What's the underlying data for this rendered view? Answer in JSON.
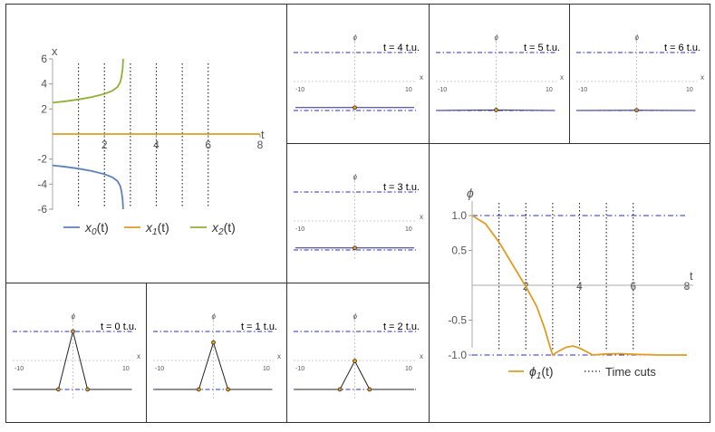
{
  "chart_data": [
    {
      "type": "line",
      "panel": "trajectories",
      "xlabel": "t",
      "ylabel": "x",
      "xlim": [
        0,
        8
      ],
      "ylim": [
        -6,
        6
      ],
      "x_ticks": [
        "2",
        "4",
        "6",
        "8"
      ],
      "y_ticks": [
        "-6",
        "-4",
        "-2",
        "2",
        "4",
        "6"
      ],
      "time_cuts": [
        1,
        2,
        3,
        4,
        5,
        6
      ],
      "series": [
        {
          "name": "x",
          "sub": "0",
          "suffix": "(t)",
          "color": "#5e81b5",
          "points": [
            [
              0,
              -2.5
            ],
            [
              0.5,
              -2.62
            ],
            [
              1,
              -2.76
            ],
            [
              1.5,
              -2.95
            ],
            [
              2,
              -3.2
            ],
            [
              2.3,
              -3.45
            ],
            [
              2.5,
              -3.75
            ],
            [
              2.6,
              -4.1
            ],
            [
              2.65,
              -4.5
            ],
            [
              2.7,
              -5.2
            ],
            [
              2.72,
              -6
            ]
          ]
        },
        {
          "name": "x",
          "sub": "1",
          "suffix": "(t)",
          "color": "#e19c24",
          "points": [
            [
              0,
              0
            ],
            [
              8,
              0
            ]
          ]
        },
        {
          "name": "x",
          "sub": "2",
          "suffix": "(t)",
          "color": "#8fb032",
          "points": [
            [
              0,
              2.5
            ],
            [
              0.5,
              2.62
            ],
            [
              1,
              2.76
            ],
            [
              1.5,
              2.95
            ],
            [
              2,
              3.2
            ],
            [
              2.3,
              3.45
            ],
            [
              2.5,
              3.75
            ],
            [
              2.6,
              4.1
            ],
            [
              2.65,
              4.5
            ],
            [
              2.7,
              5.2
            ],
            [
              2.72,
              6
            ]
          ]
        }
      ]
    },
    {
      "type": "line",
      "panel": "phi1",
      "xlabel": "t",
      "ylabel": "ϕ",
      "xlim": [
        0,
        8
      ],
      "ylim": [
        -1.25,
        1.25
      ],
      "x_ticks": [
        "2",
        "4",
        "6",
        "8"
      ],
      "y_ticks": [
        "-1.0",
        "-0.5",
        "0.5",
        "1.0"
      ],
      "reference_lines": [
        1,
        -1
      ],
      "time_cuts": [
        1,
        2,
        3,
        4,
        5,
        6
      ],
      "legend": [
        {
          "text": "ϕ",
          "sub": "1",
          "suffix": "(t)"
        },
        {
          "text": "Time cuts"
        }
      ],
      "series": [
        {
          "name": "ϕ",
          "sub": "1",
          "suffix": "(t)",
          "color": "#e19c24",
          "points": [
            [
              0,
              1
            ],
            [
              0.5,
              0.88
            ],
            [
              1,
              0.62
            ],
            [
              1.5,
              0.3
            ],
            [
              2,
              -0.02
            ],
            [
              2.4,
              -0.3
            ],
            [
              2.7,
              -0.62
            ],
            [
              2.9,
              -0.88
            ],
            [
              3,
              -1
            ],
            [
              3.2,
              -0.95
            ],
            [
              3.5,
              -0.89
            ],
            [
              3.75,
              -0.87
            ],
            [
              4,
              -0.9
            ],
            [
              4.3,
              -0.96
            ],
            [
              4.5,
              -1
            ],
            [
              5,
              -0.985
            ],
            [
              5.5,
              -0.98
            ],
            [
              6,
              -0.99
            ],
            [
              7,
              -1
            ],
            [
              8,
              -1
            ]
          ]
        }
      ]
    },
    {
      "type": "line",
      "panel": "snapshots",
      "xlabel": "x",
      "ylabel": "ϕ",
      "xlim": [
        -10,
        10
      ],
      "ylim": [
        -1,
        1
      ],
      "x_ticks": [
        "-10",
        "10"
      ],
      "reference_lines": [
        1,
        -1
      ],
      "snapshots": [
        {
          "label": "t = 0 t.u.",
          "points": [
            [
              -10,
              -1
            ],
            [
              -2.5,
              -1
            ],
            [
              0,
              1
            ],
            [
              2.5,
              -1
            ],
            [
              10,
              -1
            ]
          ]
        },
        {
          "label": "t = 1 t.u.",
          "points": [
            [
              -10,
              -1
            ],
            [
              -2.5,
              -1
            ],
            [
              0,
              0.62
            ],
            [
              2.5,
              -1
            ],
            [
              10,
              -1
            ]
          ]
        },
        {
          "label": "t = 2 t.u.",
          "points": [
            [
              -10,
              -1
            ],
            [
              -2.5,
              -1
            ],
            [
              0,
              -0.02
            ],
            [
              2.5,
              -1
            ],
            [
              10,
              -1
            ]
          ]
        },
        {
          "label": "t = 3 t.u.",
          "points": [
            [
              -10,
              -0.93
            ],
            [
              0,
              -0.93
            ],
            [
              10,
              -0.93
            ]
          ]
        },
        {
          "label": "t = 4 t.u.",
          "points": [
            [
              -10,
              -0.9
            ],
            [
              0,
              -0.9
            ],
            [
              10,
              -0.9
            ]
          ]
        },
        {
          "label": "t = 5 t.u.",
          "points": [
            [
              -10,
              -1
            ],
            [
              0,
              -0.985
            ],
            [
              10,
              -1
            ]
          ]
        },
        {
          "label": "t = 6 t.u.",
          "points": [
            [
              -10,
              -1
            ],
            [
              0,
              -0.99
            ],
            [
              10,
              -1
            ]
          ]
        }
      ]
    }
  ]
}
